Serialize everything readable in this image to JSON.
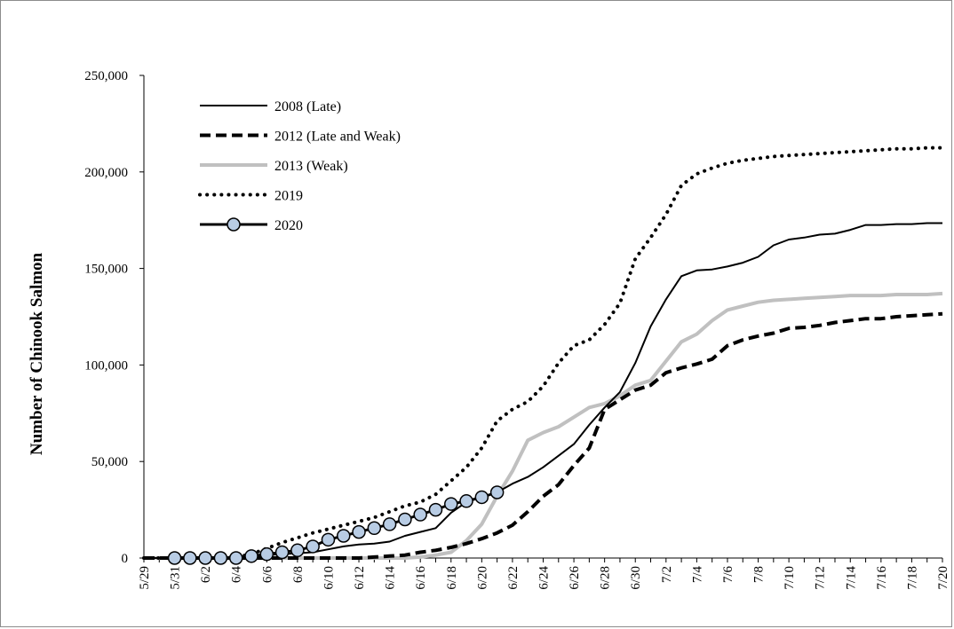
{
  "chart_data": {
    "type": "line",
    "title": "",
    "xlabel": "",
    "ylabel": "Number of Chinook Salmon",
    "ylim": [
      0,
      250000
    ],
    "yticks": [
      0,
      50000,
      100000,
      150000,
      200000,
      250000
    ],
    "ytick_labels": [
      "0",
      "50,000",
      "100,000",
      "150,000",
      "200,000",
      "250,000"
    ],
    "x_dates": [
      "5/29",
      "5/30",
      "5/31",
      "6/1",
      "6/2",
      "6/3",
      "6/4",
      "6/5",
      "6/6",
      "6/7",
      "6/8",
      "6/9",
      "6/10",
      "6/11",
      "6/12",
      "6/13",
      "6/14",
      "6/15",
      "6/16",
      "6/17",
      "6/18",
      "6/19",
      "6/20",
      "6/21",
      "6/22",
      "6/23",
      "6/24",
      "6/25",
      "6/26",
      "6/27",
      "6/28",
      "6/29",
      "6/30",
      "7/1",
      "7/2",
      "7/3",
      "7/4",
      "7/5",
      "7/6",
      "7/7",
      "7/8",
      "7/9",
      "7/10",
      "7/11",
      "7/12",
      "7/13",
      "7/14",
      "7/15",
      "7/16",
      "7/17",
      "7/18",
      "7/19",
      "7/20"
    ],
    "xtick_labels": [
      "5/29",
      "5/31",
      "6/2",
      "6/4",
      "6/6",
      "6/8",
      "6/10",
      "6/12",
      "6/14",
      "6/16",
      "6/18",
      "6/20",
      "6/22",
      "6/24",
      "6/26",
      "6/28",
      "6/30",
      "7/2",
      "7/4",
      "7/6",
      "7/8",
      "7/10",
      "7/12",
      "7/14",
      "7/16",
      "7/18",
      "7/20"
    ],
    "grid": false,
    "legend_position": "top-left",
    "series": [
      {
        "name": "2008 (Late)",
        "style": "solid",
        "color": "#000000",
        "values": [
          0,
          0,
          0,
          0,
          0,
          0,
          500,
          1000,
          1500,
          2000,
          2500,
          3000,
          4500,
          6000,
          7000,
          7500,
          8500,
          11500,
          13500,
          15500,
          23500,
          29000,
          31500,
          34000,
          38500,
          42000,
          47000,
          53000,
          59000,
          69000,
          78000,
          86000,
          101000,
          120000,
          134000,
          146000,
          149000,
          149500,
          151000,
          153000,
          156000,
          162000,
          165000,
          166000,
          167500,
          168000,
          170000,
          172500,
          172500,
          173000,
          173000,
          173500,
          173500
        ]
      },
      {
        "name": "2012 (Late and Weak)",
        "style": "dashed",
        "color": "#000000",
        "values": [
          0,
          0,
          0,
          0,
          0,
          0,
          0,
          0,
          0,
          0,
          0,
          0,
          0,
          0,
          0,
          500,
          1000,
          1500,
          3000,
          4000,
          5500,
          7500,
          10000,
          13000,
          17000,
          24000,
          32000,
          38000,
          48000,
          57000,
          77000,
          82000,
          87000,
          89500,
          96000,
          98500,
          100500,
          103000,
          110000,
          113000,
          115000,
          116500,
          119000,
          119500,
          120500,
          122000,
          123000,
          124000,
          124000,
          125000,
          125500,
          126000,
          126500
        ]
      },
      {
        "name": "2013 (Weak)",
        "style": "solid",
        "color": "#c0c0c0",
        "values": [
          0,
          0,
          0,
          0,
          0,
          0,
          0,
          0,
          0,
          0,
          0,
          0,
          0,
          0,
          0,
          0,
          0,
          0,
          500,
          1500,
          3000,
          9000,
          17500,
          32000,
          45000,
          61000,
          65000,
          68000,
          73000,
          78000,
          80000,
          84000,
          89500,
          92000,
          102000,
          112000,
          116000,
          123000,
          128500,
          130500,
          132500,
          133500,
          134000,
          134500,
          135000,
          135500,
          136000,
          136000,
          136000,
          136500,
          136500,
          136500,
          137000
        ]
      },
      {
        "name": "2019",
        "style": "dotted",
        "color": "#000000",
        "values": [
          0,
          0,
          0,
          0,
          0,
          0,
          500,
          2000,
          5000,
          8000,
          10500,
          13000,
          15000,
          17000,
          19000,
          21000,
          24000,
          27000,
          29000,
          33000,
          40000,
          47000,
          57000,
          71000,
          77000,
          81000,
          89000,
          101000,
          110000,
          113000,
          121000,
          132000,
          155000,
          166000,
          178000,
          193000,
          199000,
          202000,
          204500,
          206000,
          207000,
          208000,
          208500,
          209000,
          209500,
          210000,
          210500,
          211000,
          211500,
          212000,
          212000,
          212500,
          212500
        ]
      },
      {
        "name": "2020",
        "style": "solid-markers",
        "color": "#000000",
        "marker_color": "#b8cce4",
        "values": [
          null,
          null,
          0,
          0,
          0,
          0,
          0,
          1000,
          2000,
          3000,
          4000,
          6000,
          9500,
          11500,
          13500,
          15500,
          17500,
          20000,
          22500,
          25000,
          28000,
          29500,
          31500,
          34000,
          null,
          null,
          null,
          null,
          null,
          null,
          null,
          null,
          null,
          null,
          null,
          null,
          null,
          null,
          null,
          null,
          null,
          null,
          null,
          null,
          null,
          null,
          null,
          null,
          null,
          null,
          null,
          null,
          null
        ]
      }
    ]
  }
}
